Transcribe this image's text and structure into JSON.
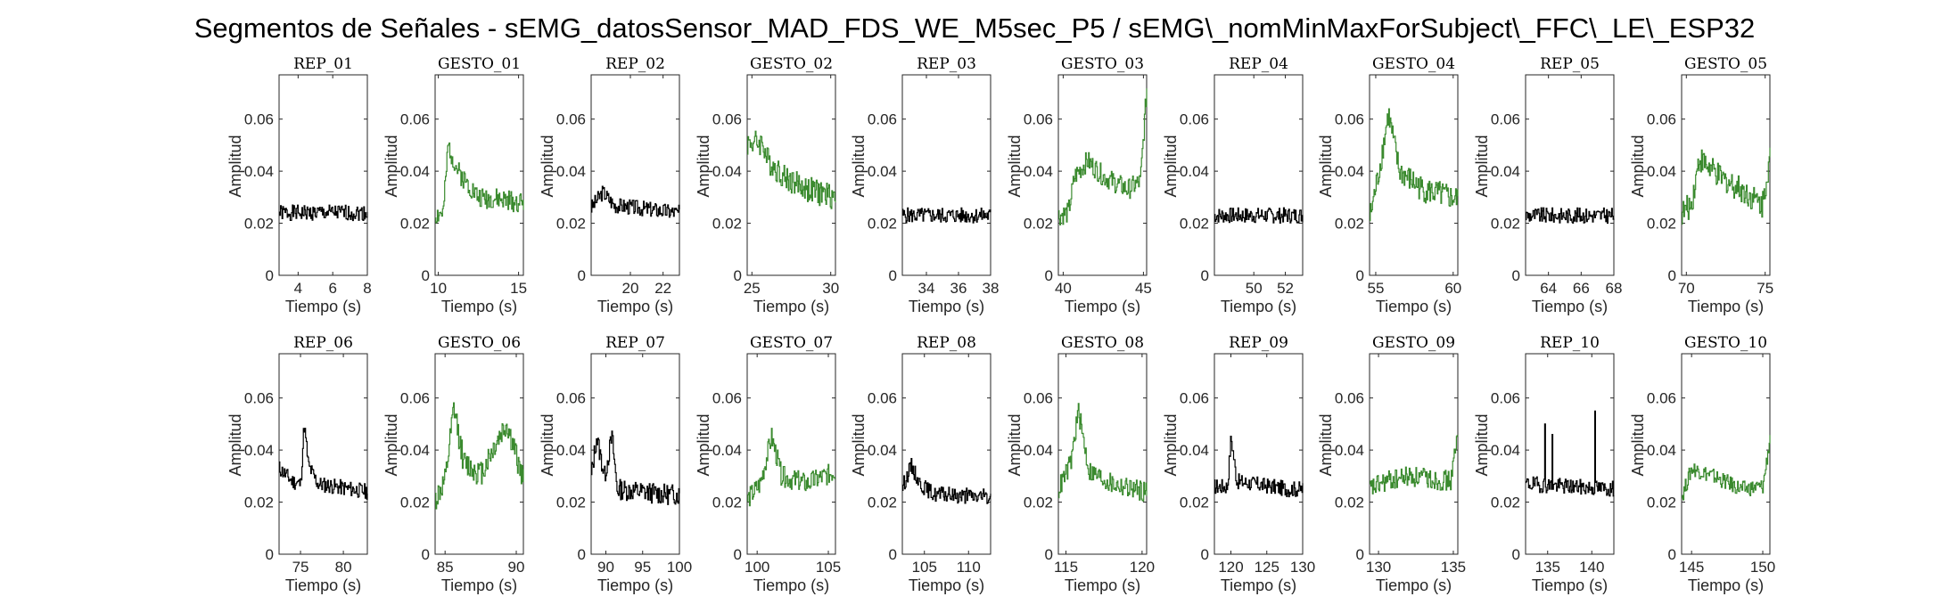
{
  "chart_data": {
    "type": "line",
    "title": "Segmentos de Señales - sEMG_datosSensor_MAD_FDS_WE_M5sec_P5 / sEMG\\_nomMinMaxForSubject\\_FFC\\_LE\\_ESP32",
    "colors": {
      "rep": "#000000",
      "gesto": "#3a8a2e"
    },
    "panels": [
      {
        "title": "REP_01",
        "kind": "rep",
        "xlim": [
          2.9,
          8
        ],
        "xticks": [
          4,
          6,
          8
        ],
        "ylim": [
          0,
          0.077
        ],
        "yticks": [
          0,
          0.02,
          0.04,
          0.06
        ],
        "xlabel": "Tiempo (s)",
        "ylabel": "Amplitud",
        "profile": [],
        "baseline": 0.024,
        "noise": 0.003,
        "seed": 1
      },
      {
        "title": "GESTO_01",
        "kind": "gesto",
        "xlim": [
          9.8,
          15.3
        ],
        "xticks": [
          10,
          15
        ],
        "ylim": [
          0,
          0.077
        ],
        "yticks": [
          0,
          0.02,
          0.04,
          0.06
        ],
        "xlabel": "Tiempo (s)",
        "ylabel": "Amplitud",
        "profile": [
          [
            9.8,
            0.023
          ],
          [
            10.3,
            0.024
          ],
          [
            10.6,
            0.05
          ],
          [
            11.2,
            0.04
          ],
          [
            12.5,
            0.03
          ],
          [
            15.3,
            0.028
          ]
        ],
        "noise": 0.004,
        "seed": 2
      },
      {
        "title": "REP_02",
        "kind": "rep",
        "xlim": [
          17.6,
          23
        ],
        "xticks": [
          20,
          22
        ],
        "ylim": [
          0,
          0.077
        ],
        "yticks": [
          0,
          0.02,
          0.04,
          0.06
        ],
        "xlabel": "Tiempo (s)",
        "ylabel": "Amplitud",
        "profile": [
          [
            17.6,
            0.026
          ],
          [
            18.3,
            0.032
          ],
          [
            19,
            0.027
          ],
          [
            23,
            0.024
          ]
        ],
        "noise": 0.003,
        "seed": 3
      },
      {
        "title": "GESTO_02",
        "kind": "gesto",
        "xlim": [
          24.7,
          30.3
        ],
        "xticks": [
          25,
          30
        ],
        "ylim": [
          0,
          0.077
        ],
        "yticks": [
          0,
          0.02,
          0.04,
          0.06
        ],
        "xlabel": "Tiempo (s)",
        "ylabel": "Amplitud",
        "profile": [
          [
            24.7,
            0.051
          ],
          [
            25.7,
            0.051
          ],
          [
            25.9,
            0.045
          ],
          [
            27,
            0.038
          ],
          [
            28.5,
            0.033
          ],
          [
            30.3,
            0.03
          ]
        ],
        "noise": 0.005,
        "seed": 4
      },
      {
        "title": "REP_03",
        "kind": "rep",
        "xlim": [
          32.5,
          38
        ],
        "xticks": [
          34,
          36,
          38
        ],
        "ylim": [
          0,
          0.077
        ],
        "yticks": [
          0,
          0.02,
          0.04,
          0.06
        ],
        "xlabel": "Tiempo (s)",
        "ylabel": "Amplitud",
        "profile": [],
        "baseline": 0.023,
        "noise": 0.003,
        "seed": 5
      },
      {
        "title": "GESTO_03",
        "kind": "gesto",
        "xlim": [
          39.7,
          45.2
        ],
        "xticks": [
          40,
          45
        ],
        "ylim": [
          0,
          0.077
        ],
        "yticks": [
          0,
          0.02,
          0.04,
          0.06
        ],
        "xlabel": "Tiempo (s)",
        "ylabel": "Amplitud",
        "profile": [
          [
            39.7,
            0.023
          ],
          [
            40.3,
            0.024
          ],
          [
            40.7,
            0.038
          ],
          [
            41.5,
            0.044
          ],
          [
            42.5,
            0.038
          ],
          [
            44,
            0.033
          ],
          [
            44.8,
            0.036
          ],
          [
            45.2,
            0.072
          ]
        ],
        "noise": 0.004,
        "seed": 6
      },
      {
        "title": "REP_04",
        "kind": "rep",
        "xlim": [
          47.5,
          53.1
        ],
        "xticks": [
          50,
          52
        ],
        "ylim": [
          0,
          0.077
        ],
        "yticks": [
          0,
          0.02,
          0.04,
          0.06
        ],
        "xlabel": "Tiempo (s)",
        "ylabel": "Amplitud",
        "profile": [],
        "baseline": 0.023,
        "noise": 0.003,
        "seed": 7
      },
      {
        "title": "GESTO_04",
        "kind": "gesto",
        "xlim": [
          54.6,
          60.3
        ],
        "xticks": [
          55,
          60
        ],
        "ylim": [
          0,
          0.077
        ],
        "yticks": [
          0,
          0.02,
          0.04,
          0.06
        ],
        "xlabel": "Tiempo (s)",
        "ylabel": "Amplitud",
        "profile": [
          [
            54.6,
            0.022
          ],
          [
            55.2,
            0.04
          ],
          [
            55.8,
            0.062
          ],
          [
            56.5,
            0.04
          ],
          [
            58,
            0.033
          ],
          [
            60.3,
            0.029
          ]
        ],
        "noise": 0.005,
        "seed": 8
      },
      {
        "title": "REP_05",
        "kind": "rep",
        "xlim": [
          62.6,
          68
        ],
        "xticks": [
          64,
          66,
          68
        ],
        "ylim": [
          0,
          0.077
        ],
        "yticks": [
          0,
          0.02,
          0.04,
          0.06
        ],
        "xlabel": "Tiempo (s)",
        "ylabel": "Amplitud",
        "profile": [],
        "baseline": 0.023,
        "noise": 0.003,
        "seed": 9
      },
      {
        "title": "GESTO_05",
        "kind": "gesto",
        "xlim": [
          69.7,
          75.3
        ],
        "xticks": [
          70,
          75
        ],
        "ylim": [
          0,
          0.077
        ],
        "yticks": [
          0,
          0.02,
          0.04,
          0.06
        ],
        "xlabel": "Tiempo (s)",
        "ylabel": "Amplitud",
        "profile": [
          [
            69.7,
            0.024
          ],
          [
            70.3,
            0.027
          ],
          [
            70.8,
            0.045
          ],
          [
            72,
            0.038
          ],
          [
            73.5,
            0.033
          ],
          [
            74.8,
            0.027
          ],
          [
            75.3,
            0.046
          ]
        ],
        "noise": 0.005,
        "seed": 10
      },
      {
        "title": "REP_06",
        "kind": "rep",
        "xlim": [
          72.5,
          82.8
        ],
        "xticks": [
          75,
          80
        ],
        "ylim": [
          0,
          0.077
        ],
        "yticks": [
          0,
          0.02,
          0.04,
          0.06
        ],
        "xlabel": "Tiempo (s)",
        "ylabel": "Amplitud",
        "profile": [
          [
            72.5,
            0.033
          ],
          [
            74,
            0.028
          ],
          [
            75,
            0.027
          ],
          [
            75.4,
            0.05
          ],
          [
            75.9,
            0.034
          ],
          [
            77,
            0.027
          ],
          [
            82.8,
            0.024
          ]
        ],
        "noise": 0.003,
        "seed": 11
      },
      {
        "title": "GESTO_06",
        "kind": "gesto",
        "xlim": [
          84.3,
          90.5
        ],
        "xticks": [
          85,
          90
        ],
        "ylim": [
          0,
          0.077
        ],
        "yticks": [
          0,
          0.02,
          0.04,
          0.06
        ],
        "xlabel": "Tiempo (s)",
        "ylabel": "Amplitud",
        "profile": [
          [
            84.3,
            0.021
          ],
          [
            85,
            0.028
          ],
          [
            85.6,
            0.056
          ],
          [
            86.3,
            0.035
          ],
          [
            87.5,
            0.031
          ],
          [
            88.5,
            0.042
          ],
          [
            89.3,
            0.05
          ],
          [
            90.5,
            0.028
          ]
        ],
        "noise": 0.005,
        "seed": 12
      },
      {
        "title": "REP_07",
        "kind": "rep",
        "xlim": [
          88,
          100
        ],
        "xticks": [
          90,
          95,
          100
        ],
        "ylim": [
          0,
          0.077
        ],
        "yticks": [
          0,
          0.02,
          0.04,
          0.06
        ],
        "xlabel": "Tiempo (s)",
        "ylabel": "Amplitud",
        "profile": [
          [
            88,
            0.03
          ],
          [
            88.7,
            0.045
          ],
          [
            89.8,
            0.03
          ],
          [
            90.8,
            0.045
          ],
          [
            91.5,
            0.025
          ],
          [
            98,
            0.023
          ]
        ],
        "noise": 0.004,
        "seed": 13
      },
      {
        "title": "GESTO_07",
        "kind": "gesto",
        "xlim": [
          99.3,
          105.5
        ],
        "xticks": [
          100,
          105
        ],
        "ylim": [
          0,
          0.077
        ],
        "yticks": [
          0,
          0.02,
          0.04,
          0.06
        ],
        "xlabel": "Tiempo (s)",
        "ylabel": "Amplitud",
        "profile": [
          [
            99.3,
            0.021
          ],
          [
            100.2,
            0.027
          ],
          [
            101,
            0.045
          ],
          [
            101.7,
            0.03
          ],
          [
            103.5,
            0.027
          ],
          [
            105.5,
            0.032
          ]
        ],
        "noise": 0.004,
        "seed": 14
      },
      {
        "title": "REP_08",
        "kind": "rep",
        "xlim": [
          102.5,
          112.5
        ],
        "xticks": [
          105,
          110
        ],
        "ylim": [
          0,
          0.077
        ],
        "yticks": [
          0,
          0.02,
          0.04,
          0.06
        ],
        "xlabel": "Tiempo (s)",
        "ylabel": "Amplitud",
        "profile": [
          [
            102.5,
            0.026
          ],
          [
            103.5,
            0.034
          ],
          [
            104.5,
            0.027
          ],
          [
            106,
            0.023
          ],
          [
            112,
            0.022
          ]
        ],
        "noise": 0.003,
        "seed": 15
      },
      {
        "title": "GESTO_08",
        "kind": "gesto",
        "xlim": [
          114.5,
          120.3
        ],
        "xticks": [
          115,
          120
        ],
        "ylim": [
          0,
          0.077
        ],
        "yticks": [
          0,
          0.02,
          0.04,
          0.06
        ],
        "xlabel": "Tiempo (s)",
        "ylabel": "Amplitud",
        "profile": [
          [
            114.5,
            0.025
          ],
          [
            115.3,
            0.035
          ],
          [
            115.8,
            0.055
          ],
          [
            116.5,
            0.032
          ],
          [
            118,
            0.027
          ],
          [
            120.3,
            0.024
          ]
        ],
        "noise": 0.004,
        "seed": 16
      },
      {
        "title": "REP_09",
        "kind": "rep",
        "xlim": [
          117.7,
          130
        ],
        "xticks": [
          120,
          125,
          130
        ],
        "ylim": [
          0,
          0.077
        ],
        "yticks": [
          0,
          0.02,
          0.04,
          0.06
        ],
        "xlabel": "Tiempo (s)",
        "ylabel": "Amplitud",
        "profile": [
          [
            117.7,
            0.026
          ],
          [
            119.5,
            0.026
          ],
          [
            120,
            0.045
          ],
          [
            120.8,
            0.028
          ],
          [
            128,
            0.025
          ]
        ],
        "noise": 0.003,
        "seed": 17
      },
      {
        "title": "GESTO_09",
        "kind": "gesto",
        "xlim": [
          129.4,
          135.3
        ],
        "xticks": [
          130,
          135
        ],
        "ylim": [
          0,
          0.077
        ],
        "yticks": [
          0,
          0.02,
          0.04,
          0.06
        ],
        "xlabel": "Tiempo (s)",
        "ylabel": "Amplitud",
        "profile": [
          [
            129.4,
            0.025
          ],
          [
            130.5,
            0.028
          ],
          [
            132,
            0.03
          ],
          [
            134.8,
            0.028
          ],
          [
            135.3,
            0.046
          ]
        ],
        "noise": 0.004,
        "seed": 18
      },
      {
        "title": "REP_10",
        "kind": "rep",
        "xlim": [
          132.5,
          142.5
        ],
        "xticks": [
          135,
          140
        ],
        "ylim": [
          0,
          0.077
        ],
        "yticks": [
          0,
          0.02,
          0.04,
          0.06
        ],
        "xlabel": "Tiempo (s)",
        "ylabel": "Amplitud",
        "profile": [
          [
            132.5,
            0.027
          ],
          [
            142.5,
            0.025
          ]
        ],
        "spikes": [
          [
            134.7,
            0.05
          ],
          [
            135.5,
            0.046
          ],
          [
            140.3,
            0.055
          ]
        ],
        "noise": 0.003,
        "seed": 19
      },
      {
        "title": "GESTO_10",
        "kind": "gesto",
        "xlim": [
          144.3,
          150.5
        ],
        "xticks": [
          145,
          150
        ],
        "ylim": [
          0,
          0.077
        ],
        "yticks": [
          0,
          0.02,
          0.04,
          0.06
        ],
        "xlabel": "Tiempo (s)",
        "ylabel": "Amplitud",
        "profile": [
          [
            144.3,
            0.022
          ],
          [
            145,
            0.033
          ],
          [
            146.5,
            0.03
          ],
          [
            148.5,
            0.025
          ],
          [
            150,
            0.026
          ],
          [
            150.5,
            0.045
          ]
        ],
        "noise": 0.003,
        "seed": 20
      }
    ]
  }
}
